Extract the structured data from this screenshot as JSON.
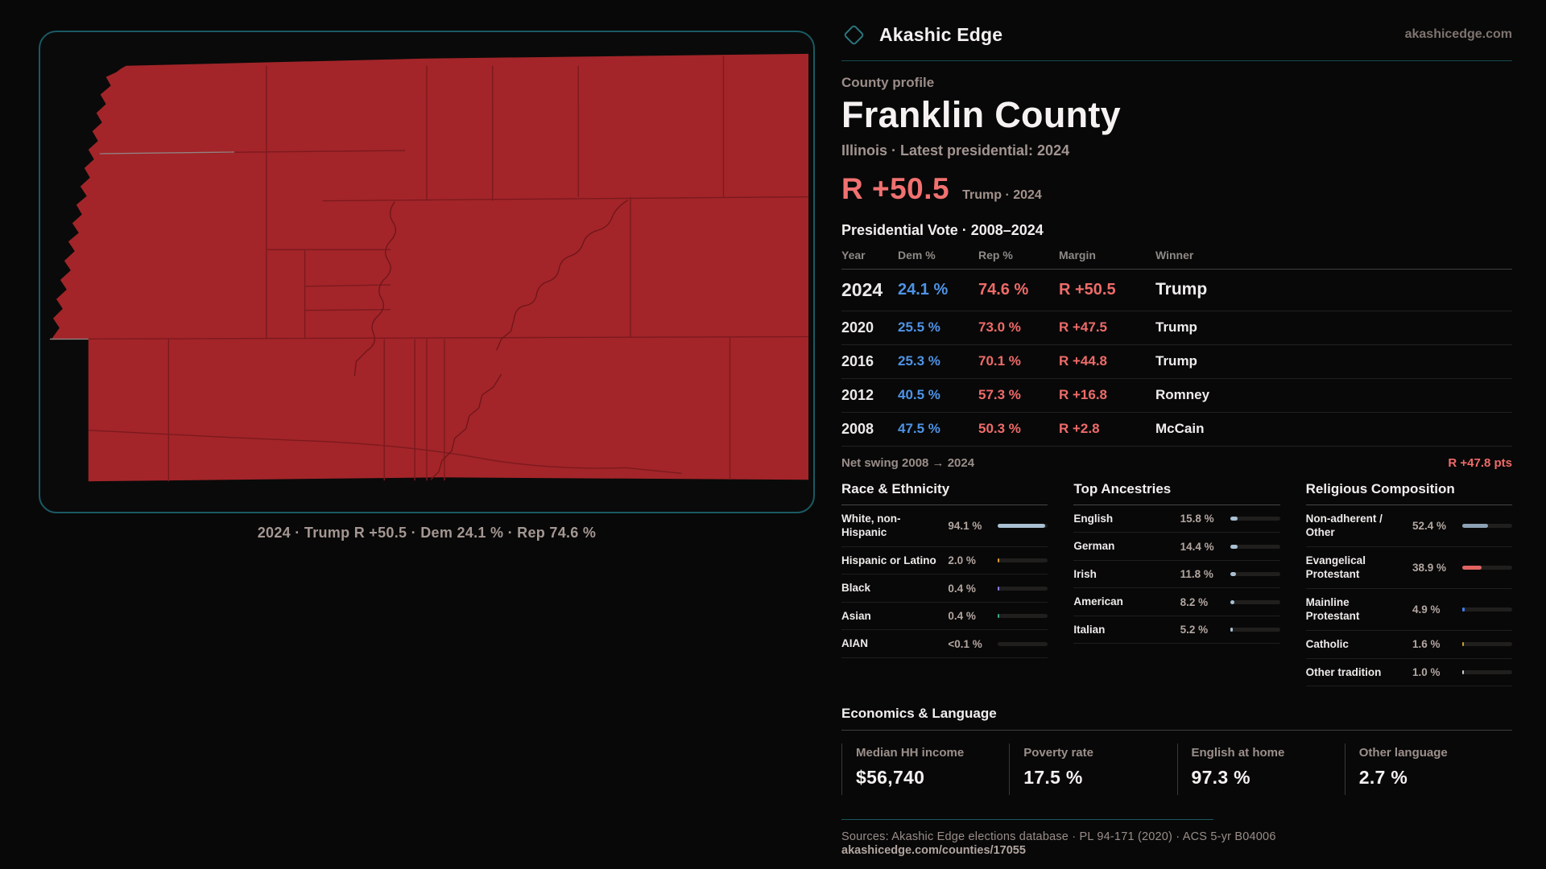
{
  "colors": {
    "accent_teal": "#1a5a64",
    "dem_blue": "#4e93e6",
    "rep_red": "#ee6b69",
    "map_fill": "#a32529"
  },
  "brand": {
    "name": "Akashic Edge",
    "site": "akashicedge.com",
    "logo_icon": "diamond-outline"
  },
  "map": {
    "caption": "2024 · Trump R +50.5 · Dem 24.1 % · Rep 74.6 %"
  },
  "profile": {
    "kicker": "County profile",
    "title": "Franklin County",
    "subtitle": "Illinois · Latest presidential: 2024",
    "margin_value": "R +50.5",
    "margin_caption": "Trump · 2024"
  },
  "vote_table": {
    "title": "Presidential Vote · 2008–2024",
    "columns": {
      "year": "Year",
      "dem": "Dem %",
      "rep": "Rep %",
      "margin": "Margin",
      "winner": "Winner"
    },
    "rows": [
      {
        "year": "2024",
        "dem": "24.1 %",
        "rep": "74.6 %",
        "margin": "R +50.5",
        "winner": "Trump"
      },
      {
        "year": "2020",
        "dem": "25.5 %",
        "rep": "73.0 %",
        "margin": "R +47.5",
        "winner": "Trump"
      },
      {
        "year": "2016",
        "dem": "25.3 %",
        "rep": "70.1 %",
        "margin": "R +44.8",
        "winner": "Trump"
      },
      {
        "year": "2012",
        "dem": "40.5 %",
        "rep": "57.3 %",
        "margin": "R +16.8",
        "winner": "Romney"
      },
      {
        "year": "2008",
        "dem": "47.5 %",
        "rep": "50.3 %",
        "margin": "R +2.8",
        "winner": "McCain"
      }
    ],
    "net_swing_label": "Net swing 2008 → 2024",
    "net_swing_value": "R +47.8 pts"
  },
  "race": {
    "title": "Race & Ethnicity",
    "rows": [
      {
        "label": "White, non-Hispanic",
        "value": "94.1 %",
        "pct": 94.1,
        "color": "#a9bfd2"
      },
      {
        "label": "Hispanic or Latino",
        "value": "2.0 %",
        "pct": 2.0,
        "color": "#d99b2f"
      },
      {
        "label": "Black",
        "value": "0.4 %",
        "pct": 0.4,
        "color": "#8f7df2"
      },
      {
        "label": "Asian",
        "value": "0.4 %",
        "pct": 0.4,
        "color": "#35ad85"
      },
      {
        "label": "AIAN",
        "value": "<0.1 %",
        "pct": 0,
        "color": "#a9bfd2"
      }
    ]
  },
  "ancestries": {
    "title": "Top Ancestries",
    "rows": [
      {
        "label": "English",
        "value": "15.8 %",
        "pct": 15.8,
        "color": "#a9bfd2"
      },
      {
        "label": "German",
        "value": "14.4 %",
        "pct": 14.4,
        "color": "#a9bfd2"
      },
      {
        "label": "Irish",
        "value": "11.8 %",
        "pct": 11.8,
        "color": "#a9bfd2"
      },
      {
        "label": "American",
        "value": "8.2 %",
        "pct": 8.2,
        "color": "#a9bfd2"
      },
      {
        "label": "Italian",
        "value": "5.2 %",
        "pct": 5.2,
        "color": "#a9bfd2"
      }
    ]
  },
  "religion": {
    "title": "Religious Composition",
    "rows": [
      {
        "label": "Non-adherent / Other",
        "value": "52.4 %",
        "pct": 52.4,
        "color": "#8da1b4"
      },
      {
        "label": "Evangelical Protestant",
        "value": "38.9 %",
        "pct": 38.9,
        "color": "#e06361"
      },
      {
        "label": "Mainline Protestant",
        "value": "4.9 %",
        "pct": 4.9,
        "color": "#3d7ef2"
      },
      {
        "label": "Catholic",
        "value": "1.6 %",
        "pct": 1.6,
        "color": "#c9a227"
      },
      {
        "label": "Other tradition",
        "value": "1.0 %",
        "pct": 1.0,
        "color": "#cfcbc9"
      }
    ]
  },
  "economics": {
    "title": "Economics & Language",
    "stats": [
      {
        "label": "Median HH income",
        "value": "$56,740"
      },
      {
        "label": "Poverty rate",
        "value": "17.5 %"
      },
      {
        "label": "English at home",
        "value": "97.3 %"
      },
      {
        "label": "Other language",
        "value": "2.7 %"
      }
    ]
  },
  "footer": {
    "sources": "Sources: Akashic Edge elections database · PL 94-171 (2020) · ACS 5-yr B04006",
    "link": "akashicedge.com/counties/17055"
  }
}
